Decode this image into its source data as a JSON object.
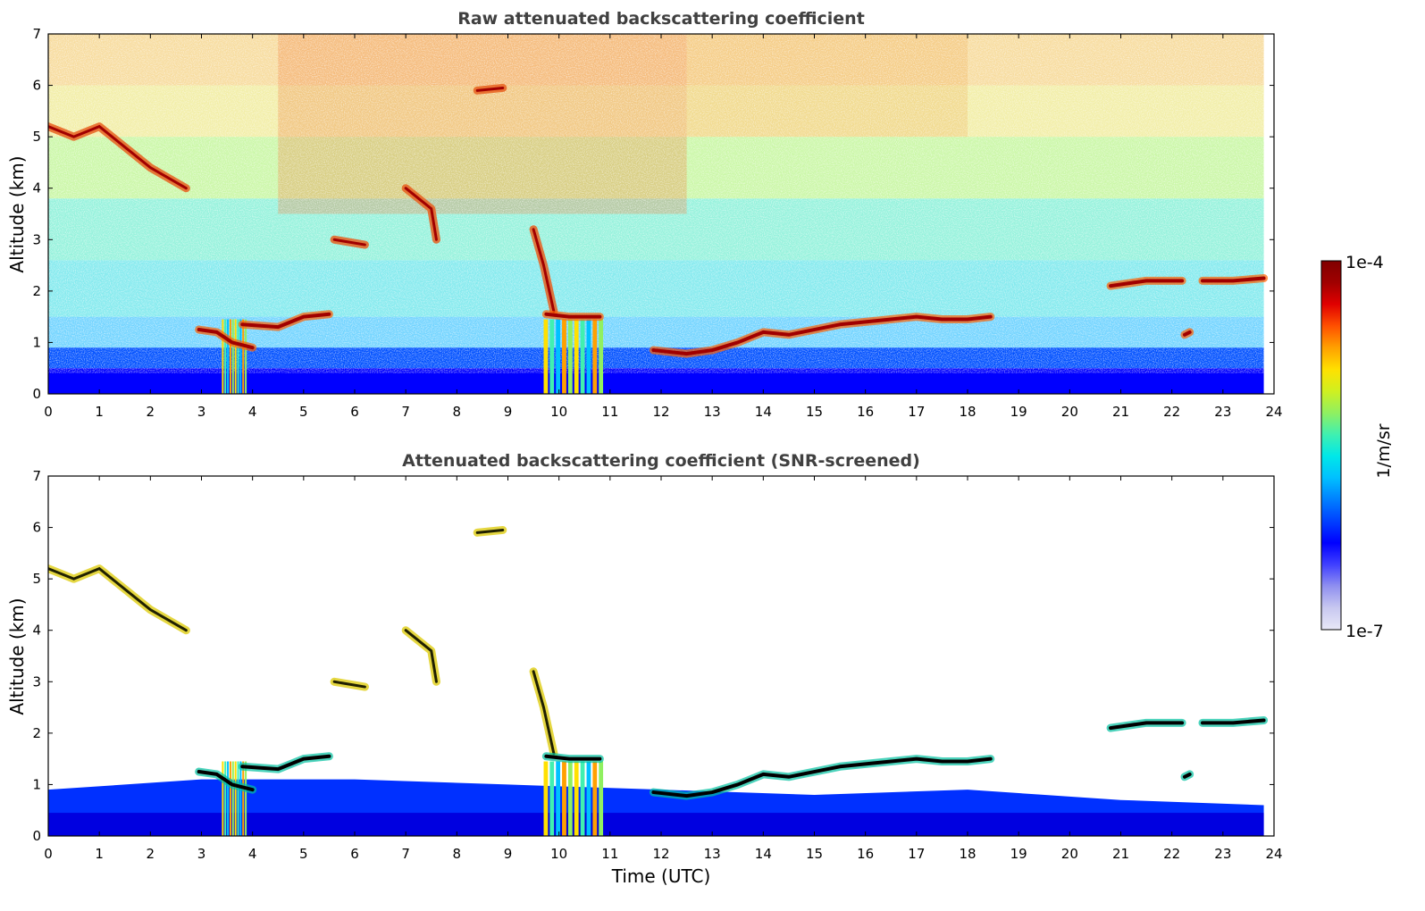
{
  "chart_data": [
    {
      "type": "heatmap",
      "title": "Raw attenuated backscattering coefficient",
      "ylabel": "Altitude (km)",
      "xlabel": "",
      "xlim": [
        0,
        24
      ],
      "ylim": [
        0,
        7
      ],
      "xticks": [
        "0",
        "1",
        "2",
        "3",
        "4",
        "5",
        "6",
        "7",
        "8",
        "9",
        "10",
        "11",
        "12",
        "13",
        "14",
        "15",
        "16",
        "17",
        "18",
        "19",
        "20",
        "21",
        "22",
        "23",
        "24"
      ],
      "yticks": [
        "0",
        "1",
        "2",
        "3",
        "4",
        "5",
        "6",
        "7"
      ],
      "data_end_hour": 23.8,
      "features": {
        "boundary_layer_top_km": [
          [
            0,
            0.9
          ],
          [
            3,
            1.1
          ],
          [
            6,
            1.1
          ],
          [
            9,
            1.0
          ],
          [
            12,
            0.9
          ],
          [
            15,
            0.8
          ],
          [
            18,
            0.9
          ],
          [
            21,
            0.7
          ],
          [
            23.8,
            0.6
          ]
        ],
        "cloud_base_segments_km": [
          [
            [
              2.95,
              1.25
            ],
            [
              3.3,
              1.2
            ],
            [
              3.6,
              1.0
            ],
            [
              4.0,
              0.9
            ]
          ],
          [
            [
              3.8,
              1.35
            ],
            [
              4.5,
              1.3
            ],
            [
              5.0,
              1.5
            ],
            [
              5.5,
              1.55
            ]
          ],
          [
            [
              9.75,
              1.55
            ],
            [
              10.2,
              1.5
            ],
            [
              10.8,
              1.5
            ]
          ],
          [
            [
              11.85,
              0.85
            ],
            [
              12.5,
              0.78
            ],
            [
              13.0,
              0.85
            ],
            [
              13.5,
              1.0
            ],
            [
              14.0,
              1.2
            ],
            [
              14.5,
              1.15
            ],
            [
              15.0,
              1.25
            ],
            [
              15.5,
              1.35
            ],
            [
              16.0,
              1.4
            ],
            [
              16.5,
              1.45
            ],
            [
              17.0,
              1.5
            ],
            [
              17.5,
              1.45
            ],
            [
              18.0,
              1.45
            ],
            [
              18.45,
              1.5
            ]
          ],
          [
            [
              20.8,
              2.1
            ],
            [
              21.5,
              2.2
            ],
            [
              22.2,
              2.2
            ]
          ],
          [
            [
              22.6,
              2.2
            ],
            [
              23.2,
              2.2
            ],
            [
              23.8,
              2.25
            ]
          ],
          [
            [
              22.25,
              1.15
            ],
            [
              22.35,
              1.2
            ]
          ]
        ],
        "elevated_layers_km": [
          [
            [
              0,
              5.2
            ],
            [
              0.5,
              5.0
            ],
            [
              1.0,
              5.2
            ],
            [
              1.5,
              4.8
            ],
            [
              2.0,
              4.4
            ],
            [
              2.7,
              4.0
            ]
          ],
          [
            [
              5.6,
              3.0
            ],
            [
              6.2,
              2.9
            ]
          ],
          [
            [
              7.0,
              4.0
            ],
            [
              7.5,
              3.6
            ],
            [
              7.6,
              3.0
            ]
          ],
          [
            [
              9.5,
              3.2
            ],
            [
              9.7,
              2.5
            ],
            [
              9.9,
              1.6
            ]
          ],
          [
            [
              8.4,
              5.9
            ],
            [
              8.9,
              5.95
            ]
          ]
        ],
        "precip_columns_hours": [
          [
            3.4,
            3.9
          ],
          [
            9.7,
            10.9
          ]
        ]
      }
    },
    {
      "type": "heatmap",
      "title": "Attenuated backscattering coefficient (SNR-screened)",
      "ylabel": "Altitude (km)",
      "xlabel": "Time (UTC)",
      "xlim": [
        0,
        24
      ],
      "ylim": [
        0,
        7
      ],
      "xticks": [
        "0",
        "1",
        "2",
        "3",
        "4",
        "5",
        "6",
        "7",
        "8",
        "9",
        "10",
        "11",
        "12",
        "13",
        "14",
        "15",
        "16",
        "17",
        "18",
        "19",
        "20",
        "21",
        "22",
        "23",
        "24"
      ],
      "yticks": [
        "0",
        "1",
        "2",
        "3",
        "4",
        "5",
        "6",
        "7"
      ],
      "data_end_hour": 23.8
    }
  ],
  "colorbar": {
    "label": "1/m/sr",
    "max_label": "1e-4",
    "min_label": "1e-7",
    "colormap": [
      "#e8e8f8",
      "#c8c8f0",
      "#9090f0",
      "#4040ff",
      "#0000ff",
      "#0040ff",
      "#0080ff",
      "#00c0ff",
      "#00e8e8",
      "#40f0b0",
      "#90f060",
      "#d0f020",
      "#ffe000",
      "#ffa000",
      "#ff5000",
      "#e00000",
      "#a00000",
      "#800000"
    ]
  }
}
